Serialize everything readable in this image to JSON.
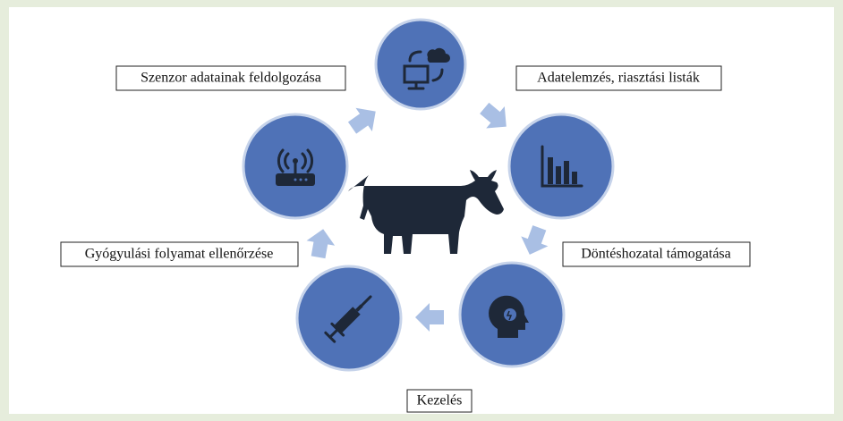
{
  "nodes": [
    {
      "label": "Szenzor adatainak feldolgozása"
    },
    {
      "label": "Adatelemzés, riasztási listák"
    },
    {
      "label": "Döntéshozatal támogatása"
    },
    {
      "label": "Kezelés"
    },
    {
      "label": "Gyógyulási folyamat ellenőrzése"
    }
  ]
}
